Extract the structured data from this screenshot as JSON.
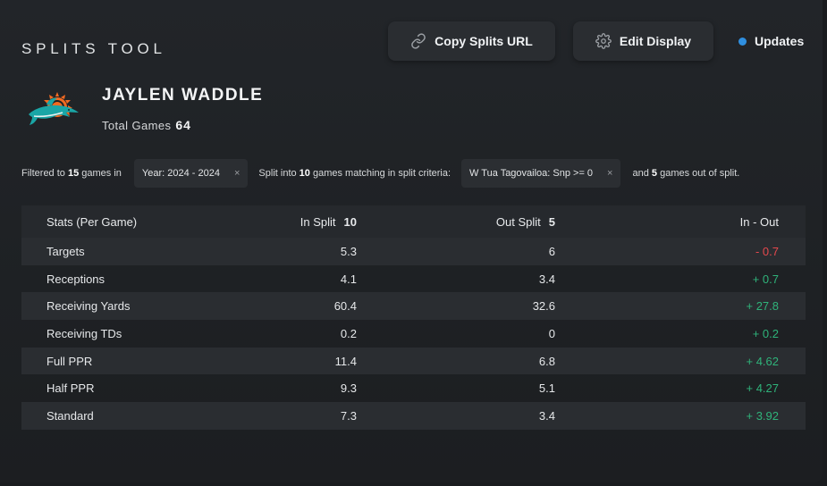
{
  "header": {
    "title": "SPLITS TOOL",
    "copy_url_label": "Copy Splits URL",
    "edit_display_label": "Edit Display",
    "updates_label": "Updates"
  },
  "icons": {
    "copy": "link-icon",
    "edit": "gear-icon",
    "updates": "status-dot-icon",
    "team": "miami-dolphins-logo"
  },
  "player": {
    "name": "JAYLEN WADDLE",
    "total_games_label": "Total Games",
    "total_games": "64"
  },
  "filters": {
    "prefix": "Filtered to ",
    "filtered_count": "15",
    "games_in": " games in",
    "year_chip": "Year: 2024 - 2024",
    "split_into": "Split into ",
    "split_count": "10",
    "matching": " games matching in split criteria:",
    "split_chip": "W Tua Tagovailoa: Snp >= 0",
    "and": "and ",
    "out_count": "5",
    "out_of_split": " games out of split.",
    "remove_symbol": "×"
  },
  "table": {
    "headers": {
      "stat": "Stats (Per Game)",
      "in_split": "In Split",
      "in_split_count": "10",
      "out_split": "Out Split",
      "out_split_count": "5",
      "diff": "In - Out"
    },
    "rows": [
      {
        "stat": "Targets",
        "in": "5.3",
        "out": "6",
        "diff": "- 0.7"
      },
      {
        "stat": "Receptions",
        "in": "4.1",
        "out": "3.4",
        "diff": "+ 0.7"
      },
      {
        "stat": "Receiving Yards",
        "in": "60.4",
        "out": "32.6",
        "diff": "+ 27.8"
      },
      {
        "stat": "Receiving TDs",
        "in": "0.2",
        "out": "0",
        "diff": "+ 0.2"
      },
      {
        "stat": "Full PPR",
        "in": "11.4",
        "out": "6.8",
        "diff": "+ 4.62"
      },
      {
        "stat": "Half PPR",
        "in": "9.3",
        "out": "5.1",
        "diff": "+ 4.27"
      },
      {
        "stat": "Standard",
        "in": "7.3",
        "out": "3.4",
        "diff": "+ 3.92"
      }
    ]
  },
  "colors": {
    "negative": "#e5484d",
    "positive": "#2fb37a",
    "accent_dot": "#2f8fe0",
    "dolphins_aqua": "#1aa6a6",
    "dolphins_orange": "#f26a21"
  }
}
